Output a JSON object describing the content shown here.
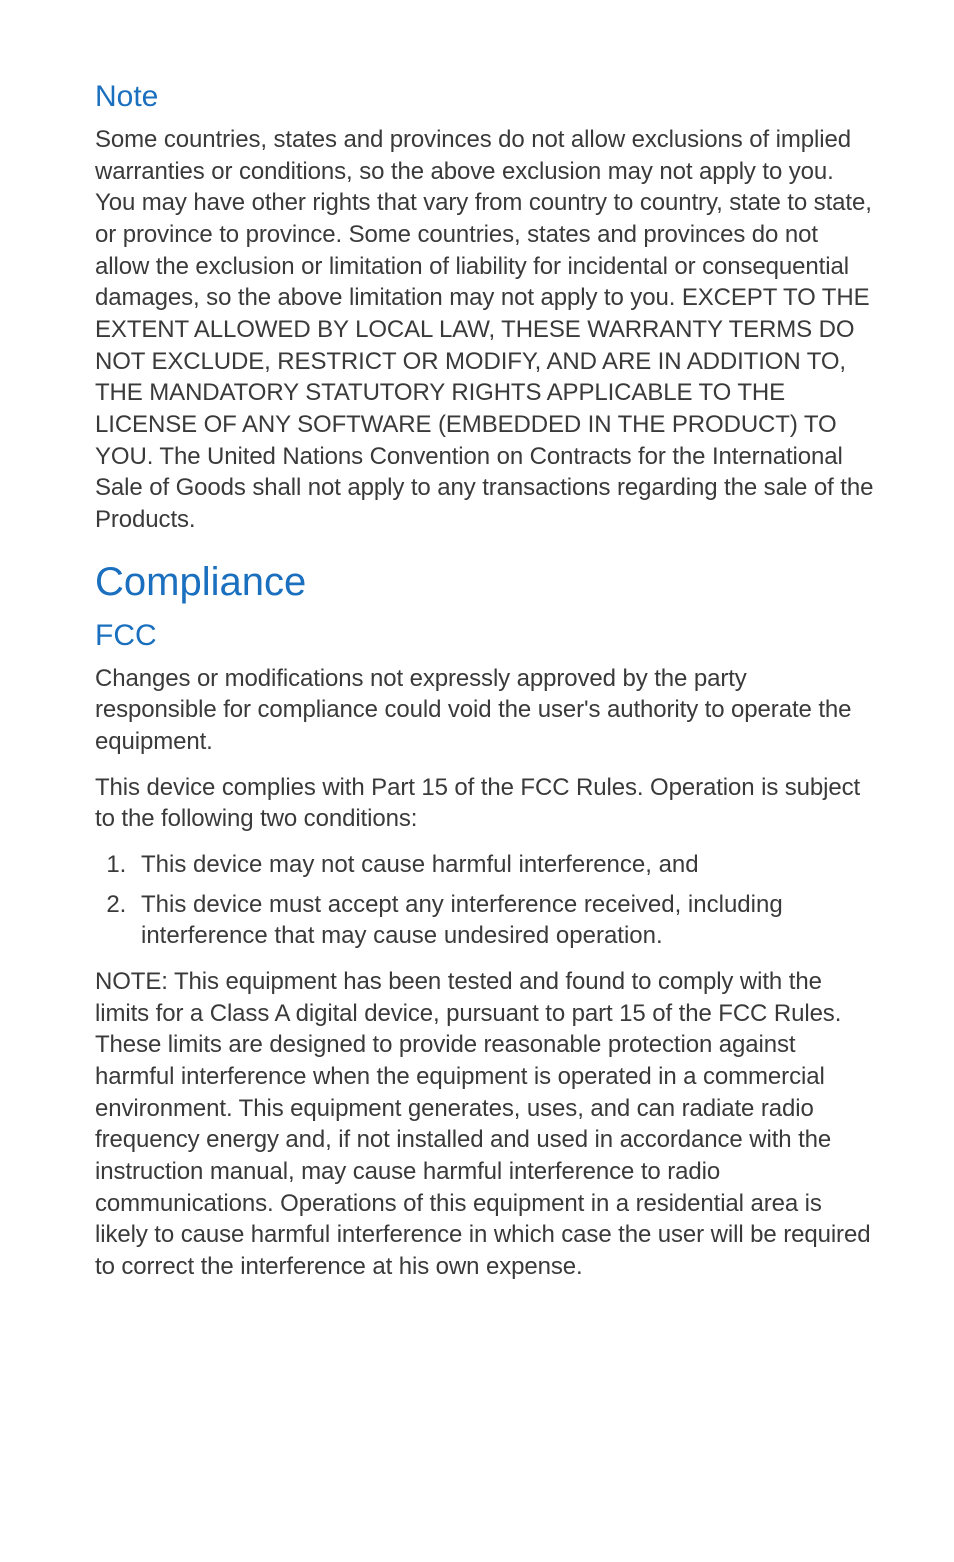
{
  "colors": {
    "heading": "#1a6fbf",
    "body": "#3a3a3a",
    "background": "#ffffff"
  },
  "typography": {
    "h2_fontsize": 40,
    "h3_fontsize": 30,
    "body_fontsize": 24,
    "line_height": 1.32
  },
  "sections": {
    "note": {
      "heading": "Note",
      "body": "Some countries, states and provinces do not allow exclusions of implied warranties or conditions, so the above exclusion may not apply to you. You may have other rights that vary from country to country, state to state, or province to province. Some countries, states and provinces do not allow the exclusion or limitation of liability for incidental or consequential damages, so the above limitation may not apply to you. EXCEPT TO THE EXTENT ALLOWED BY LOCAL LAW, THESE WARRANTY TERMS DO NOT EXCLUDE, RESTRICT OR MODIFY, AND ARE IN ADDITION TO, THE MANDATORY STATUTORY RIGHTS APPLICABLE TO THE LICENSE OF ANY SOFTWARE (EMBEDDED IN THE PRODUCT) TO YOU. The United Nations Convention on Contracts for the International Sale of Goods shall not apply to any transactions regarding the sale of the Products."
    },
    "compliance": {
      "heading": "Compliance"
    },
    "fcc": {
      "heading": "FCC",
      "para1": "Changes or modifications not expressly approved by the party responsible for compliance could void the user's authority to operate the equipment.",
      "para2": "This device complies with Part 15 of the FCC Rules. Operation is subject to the following two conditions:",
      "list": [
        "This device may not cause harmful interference, and",
        "This device must accept any interference received, including interference that may cause undesired operation."
      ],
      "para3": "NOTE: This equipment has been tested and found to comply with the limits for a Class A digital device, pursuant to part 15 of the FCC Rules. These limits are designed to provide reasonable protection against harmful interference when the equipment is operated in a commercial environment. This equipment generates, uses, and can radiate radio frequency energy and, if not installed and used in accordance with the instruction manual, may cause harmful interference to radio communications. Operations of this equipment in a residential area is likely to cause harmful interference in which case the user will be required to correct the interference at his own expense."
    }
  }
}
